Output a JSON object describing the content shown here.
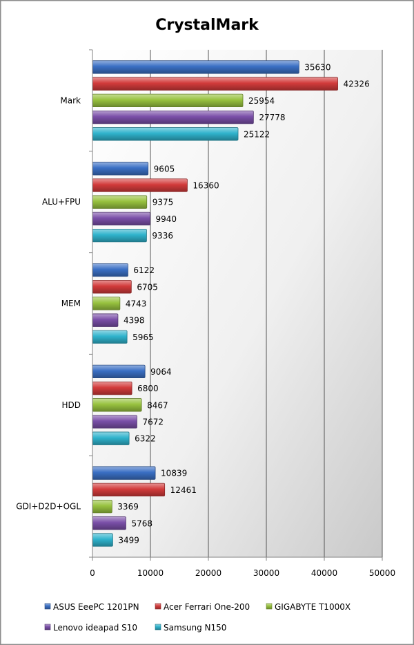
{
  "chart_data": {
    "type": "bar",
    "orientation": "horizontal",
    "title": "CrystalMark",
    "categories": [
      "Mark",
      "ALU+FPU",
      "MEM",
      "HDD",
      "GDI+D2D+OGL"
    ],
    "xlim": [
      0,
      50000
    ],
    "xticks": [
      0,
      10000,
      20000,
      30000,
      40000,
      50000
    ],
    "grid": true,
    "legend_position": "bottom",
    "series": [
      {
        "name": "ASUS EeePC 1201PN",
        "color": "#3a6fc4",
        "values": [
          35630,
          9605,
          6122,
          9064,
          10839
        ]
      },
      {
        "name": "Acer Ferrari One-200",
        "color": "#d23b3b",
        "values": [
          42326,
          16360,
          6705,
          6800,
          12461
        ]
      },
      {
        "name": "GIGABYTE T1000X",
        "color": "#98c23f",
        "values": [
          25954,
          9375,
          4743,
          8467,
          3369
        ]
      },
      {
        "name": "Lenovo ideapad S10",
        "color": "#7a4fa8",
        "values": [
          27778,
          9940,
          4398,
          7672,
          5768
        ]
      },
      {
        "name": "Samsung N150",
        "color": "#2fb3cc",
        "values": [
          25122,
          9336,
          5965,
          6322,
          3499
        ]
      }
    ]
  }
}
